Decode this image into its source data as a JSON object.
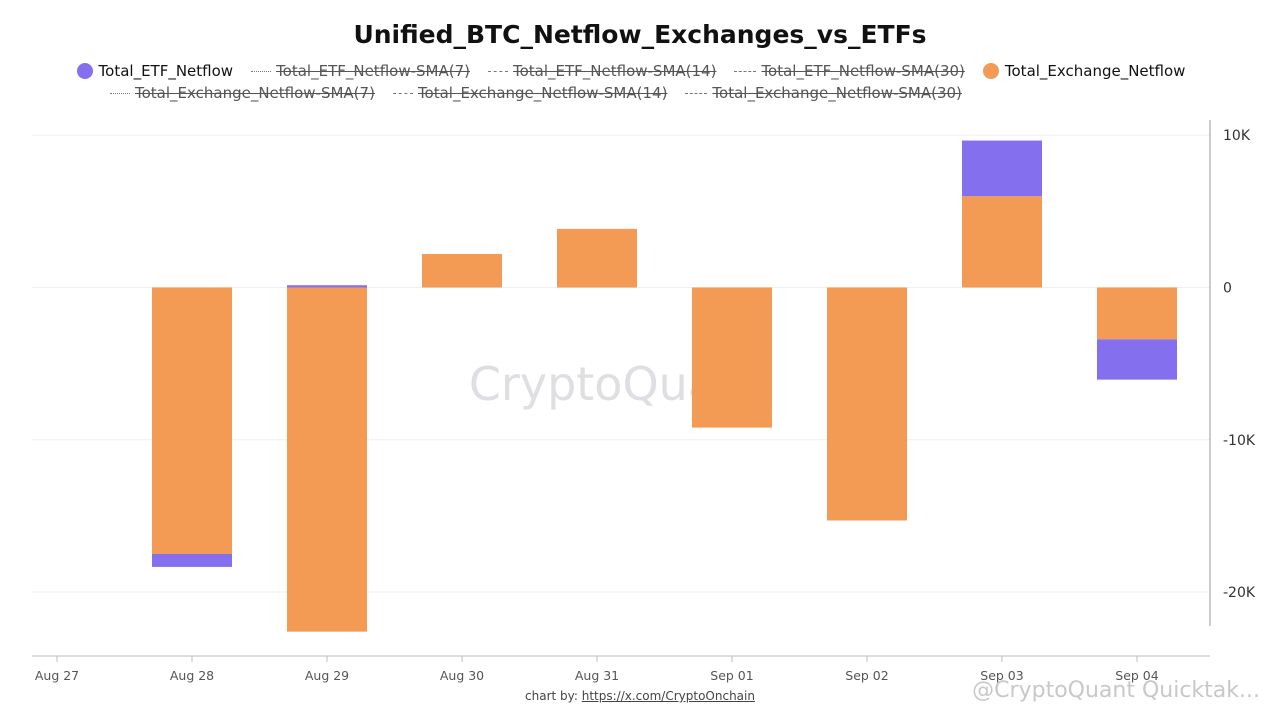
{
  "chart_data": {
    "type": "bar",
    "stacked": true,
    "title": "Unified_BTC_Netflow_Exchanges_vs_ETFs",
    "categories": [
      "Aug 27",
      "Aug 28",
      "Aug 29",
      "Aug 30",
      "Aug 31",
      "Sep 01",
      "Sep 02",
      "Sep 03",
      "Sep 04"
    ],
    "series": [
      {
        "name": "Total_Exchange_Netflow",
        "color": "#F39A55",
        "values": [
          null,
          -17500,
          -22600,
          2200,
          3850,
          -9200,
          -15300,
          6000,
          -3400
        ]
      },
      {
        "name": "Total_ETF_Netflow",
        "color": "#8470EE",
        "values": [
          null,
          -850,
          150,
          0,
          0,
          0,
          0,
          3650,
          -2650
        ]
      }
    ],
    "legend": [
      {
        "label": "Total_ETF_Netflow",
        "marker": "dot",
        "color": "#8470EE",
        "active": true
      },
      {
        "label": "Total_ETF_Netflow-SMA(7)",
        "marker": "dotted-line",
        "active": false
      },
      {
        "label": "Total_ETF_Netflow-SMA(14)",
        "marker": "dashed-line",
        "active": false
      },
      {
        "label": "Total_ETF_Netflow-SMA(30)",
        "marker": "long-dashed-line",
        "active": false
      },
      {
        "label": "Total_Exchange_Netflow",
        "marker": "dot",
        "color": "#F39A55",
        "active": true
      },
      {
        "label": "Total_Exchange_Netflow-SMA(7)",
        "marker": "dotted-line",
        "active": false
      },
      {
        "label": "Total_Exchange_Netflow-SMA(14)",
        "marker": "dashed-line",
        "active": false
      },
      {
        "label": "Total_Exchange_Netflow-SMA(30)",
        "marker": "long-dashed-line",
        "active": false
      }
    ],
    "y_axis": {
      "position": "right",
      "ticks": [
        10000,
        0,
        -10000,
        -20000
      ],
      "tick_labels": [
        "10K",
        "0",
        "-10K",
        "-20K"
      ],
      "ylim": [
        -24200,
        11000
      ]
    },
    "grid": true,
    "legend_position": "top"
  },
  "watermark": "CryptoQuant",
  "credit": {
    "prefix": "chart by: ",
    "link_text": "https://x.com/CryptoOnchain"
  },
  "corner_watermark": "@CryptoQuant Quicktak..."
}
